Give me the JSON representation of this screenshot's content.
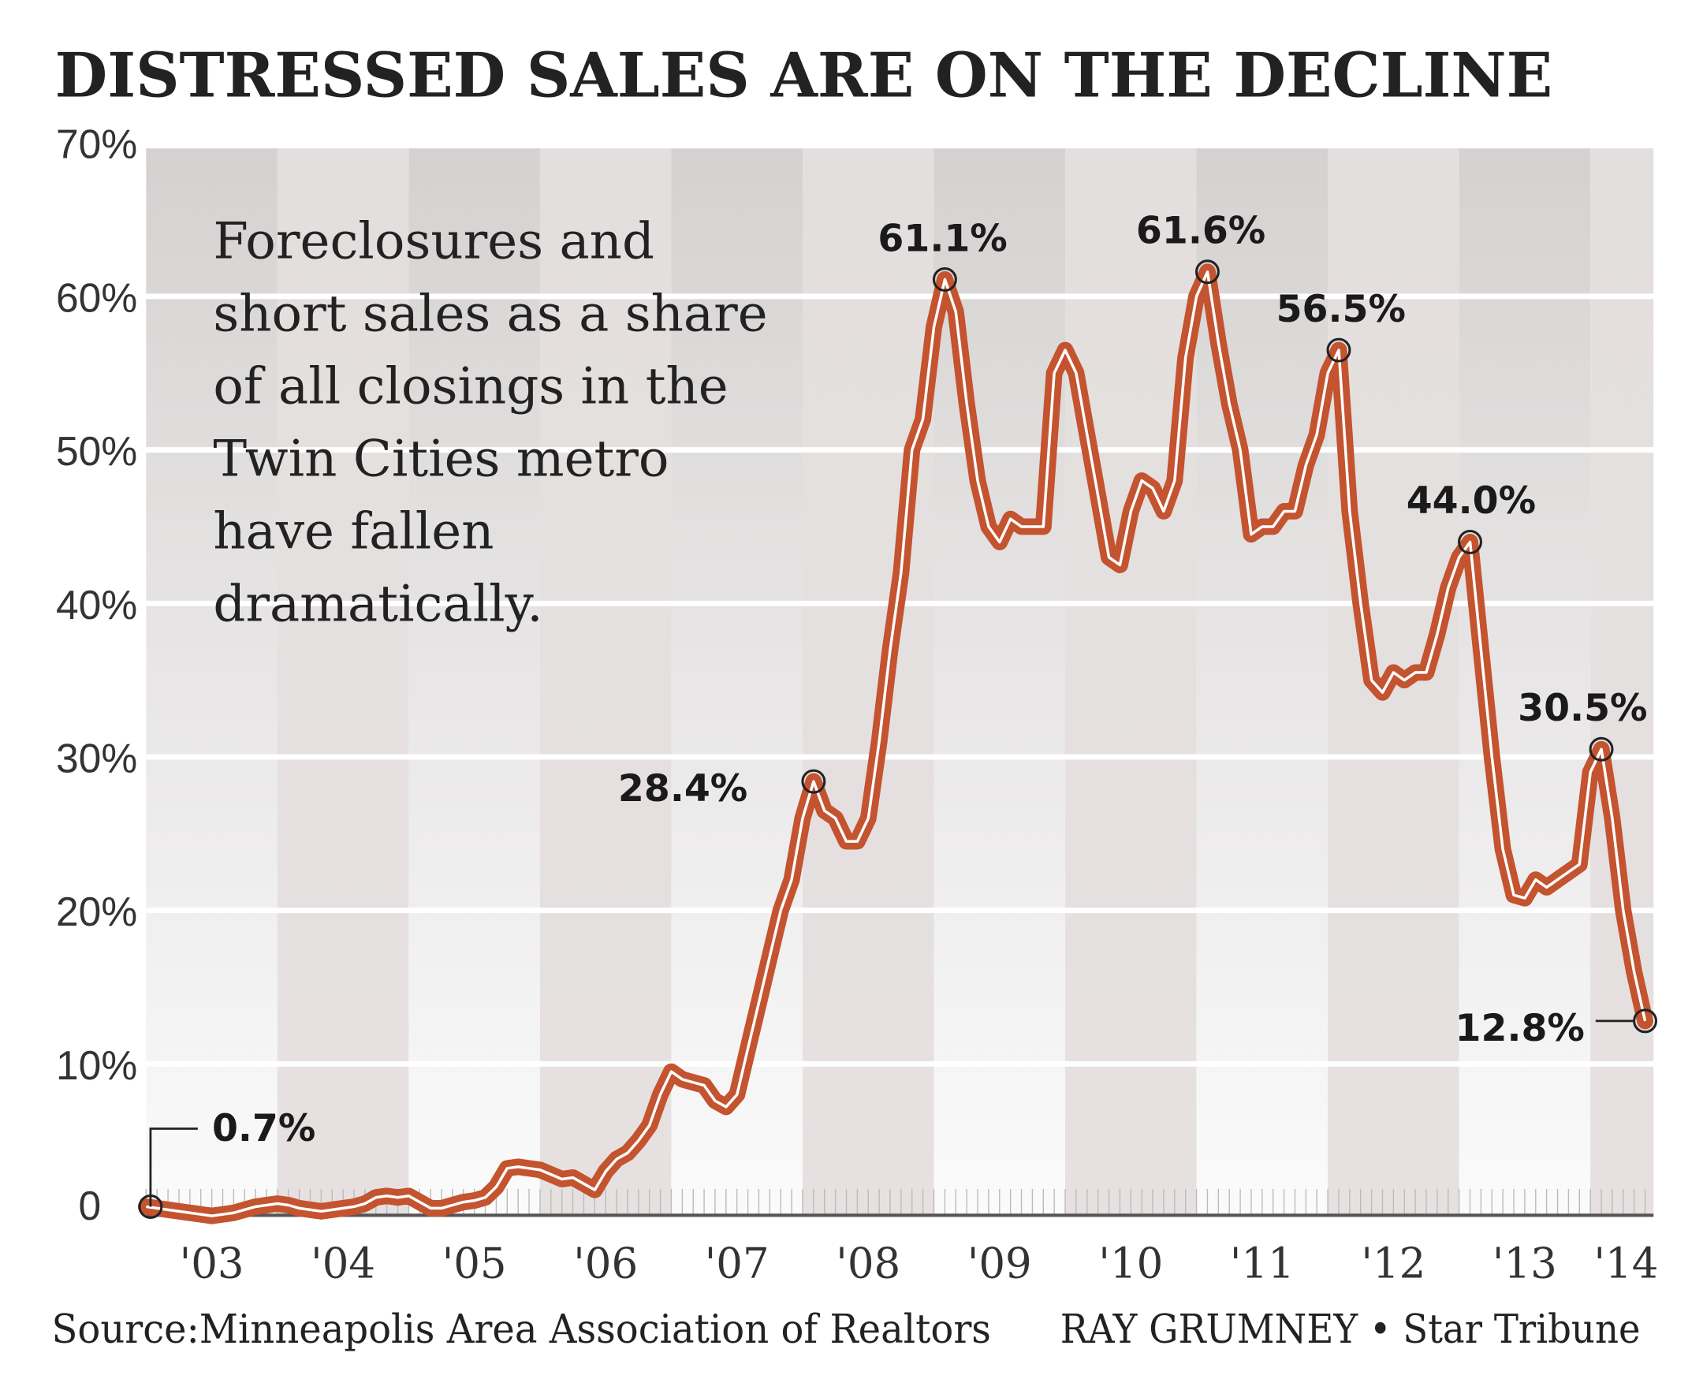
{
  "chart_data": {
    "type": "line",
    "title": "DISTRESSED SALES ARE ON THE DECLINE",
    "annotation": [
      "Foreclosures and",
      "short sales as a share",
      "of all closings in the",
      "Twin Cities metro",
      "have fallen",
      "dramatically."
    ],
    "ylim": [
      0,
      70
    ],
    "yticks": [
      {
        "value": 0,
        "label": "0"
      },
      {
        "value": 10,
        "label": "10%"
      },
      {
        "value": 20,
        "label": "20%"
      },
      {
        "value": 30,
        "label": "30%"
      },
      {
        "value": 40,
        "label": "40%"
      },
      {
        "value": 50,
        "label": "50%"
      },
      {
        "value": 60,
        "label": "60%"
      },
      {
        "value": 70,
        "label": "70%"
      }
    ],
    "xticks": [
      "'03",
      "'04",
      "'05",
      "'06",
      "'07",
      "'08",
      "'09",
      "'10",
      "'11",
      "'12",
      "'13",
      "'14"
    ],
    "x_start": "2003-01",
    "x_frequency": "monthly",
    "grid": true,
    "line_color": "#c4532f",
    "values": [
      0.7,
      0.6,
      0.5,
      0.4,
      0.3,
      0.2,
      0.1,
      0.2,
      0.3,
      0.5,
      0.7,
      0.8,
      0.9,
      0.8,
      0.6,
      0.5,
      0.4,
      0.5,
      0.6,
      0.7,
      0.9,
      1.3,
      1.4,
      1.3,
      1.4,
      1.0,
      0.6,
      0.6,
      0.8,
      1.0,
      1.1,
      1.3,
      2.0,
      3.2,
      3.3,
      3.2,
      3.1,
      2.8,
      2.5,
      2.6,
      2.2,
      1.8,
      3.0,
      3.8,
      4.2,
      5.0,
      6.0,
      8.0,
      9.5,
      9.0,
      8.8,
      8.6,
      7.6,
      7.2,
      8.0,
      11,
      14,
      17,
      20,
      22,
      26,
      28.4,
      26.5,
      26,
      24.5,
      24.5,
      26,
      31,
      37,
      42,
      50,
      52,
      58,
      61.1,
      59,
      53,
      48,
      45,
      44,
      45.5,
      45,
      45,
      45,
      55,
      56.5,
      55,
      51,
      47,
      43,
      42.5,
      46,
      48,
      47.5,
      46,
      48,
      56,
      60,
      61.6,
      57,
      53,
      50,
      44.5,
      45,
      45,
      46,
      46,
      49,
      51,
      55,
      56.5,
      46,
      40,
      35,
      34.2,
      35.5,
      35,
      35.5,
      35.5,
      38,
      41,
      43,
      44.0,
      37,
      30,
      24,
      21,
      20.8,
      22,
      21.5,
      22,
      22.5,
      23,
      29,
      30.5,
      26,
      20,
      16,
      12.8
    ],
    "labeled_points": [
      {
        "date": "2003-01",
        "value": 0.7,
        "label": "0.7%"
      },
      {
        "date": "2008-02",
        "value": 28.4,
        "label": "28.4%"
      },
      {
        "date": "2009-02",
        "value": 61.1,
        "label": "61.1%"
      },
      {
        "date": "2011-02",
        "value": 61.6,
        "label": "61.6%"
      },
      {
        "date": "2012-02",
        "value": 56.5,
        "label": "56.5%"
      },
      {
        "date": "2013-02",
        "value": 44.0,
        "label": "44.0%"
      },
      {
        "date": "2014-02",
        "value": 30.5,
        "label": "30.5%"
      },
      {
        "date": "2014-06",
        "value": 12.8,
        "label": "12.8%"
      }
    ],
    "source": "Source:Minneapolis Area Association of Realtors",
    "credit": "RAY GRUMNEY • Star Tribune"
  }
}
